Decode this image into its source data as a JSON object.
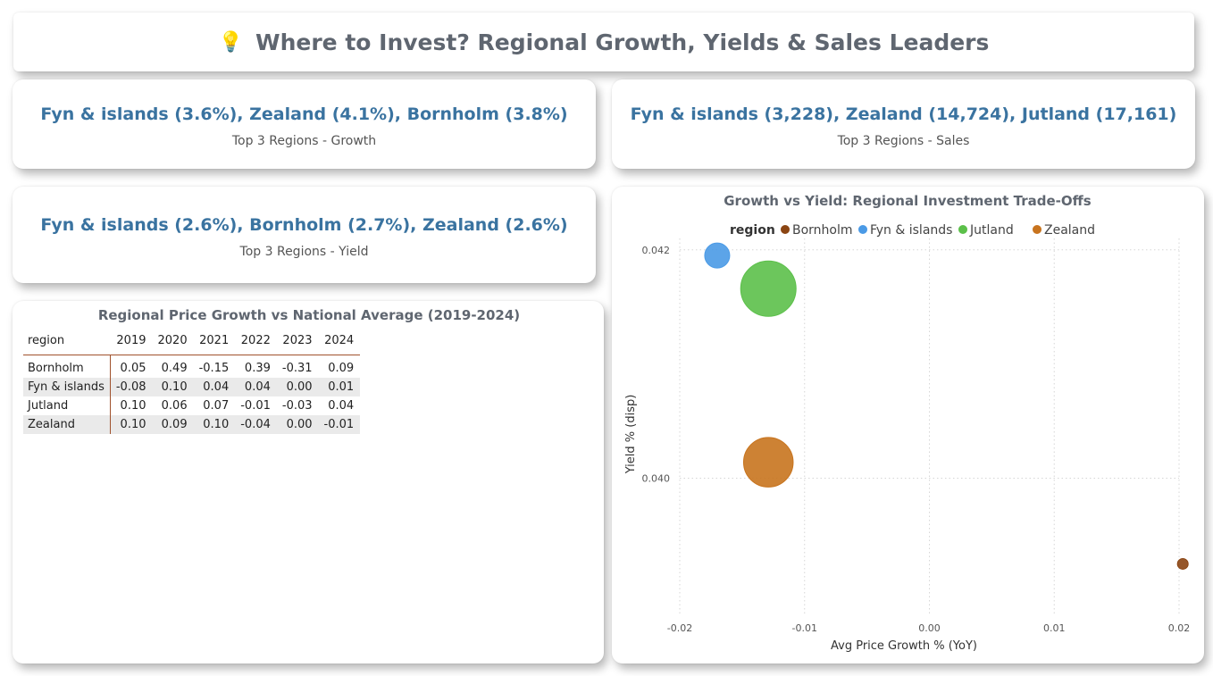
{
  "header": {
    "icon": "lightbulb-icon",
    "title": "Where to Invest? Regional Growth, Yields & Sales Leaders"
  },
  "kpis": {
    "growth": {
      "value": "Fyn & islands (3.6%), Zealand (4.1%), Bornholm (3.8%)",
      "label": "Top 3 Regions - Growth"
    },
    "sales": {
      "value": "Fyn & islands (3,228), Zealand (14,724), Jutland (17,161)",
      "label": "Top 3 Regions - Sales"
    },
    "yield": {
      "value": "Fyn & islands (2.6%), Bornholm (2.7%), Zealand (2.6%)",
      "label": "Top 3 Regions - Yield"
    }
  },
  "matrix": {
    "title": "Regional Price Growth vs National Average (2019-2024)",
    "row_header": "region",
    "columns": [
      "2019",
      "2020",
      "2021",
      "2022",
      "2023",
      "2024"
    ],
    "rows": [
      {
        "region": "Bornholm",
        "values": [
          "0.05",
          "0.49",
          "-0.15",
          "0.39",
          "-0.31",
          "0.09"
        ]
      },
      {
        "region": "Fyn & islands",
        "values": [
          "-0.08",
          "0.10",
          "0.04",
          "0.04",
          "0.00",
          "0.01"
        ]
      },
      {
        "region": "Jutland",
        "values": [
          "0.10",
          "0.06",
          "0.07",
          "-0.01",
          "-0.03",
          "0.04"
        ]
      },
      {
        "region": "Zealand",
        "values": [
          "0.10",
          "0.09",
          "0.10",
          "-0.04",
          "0.00",
          "-0.01"
        ]
      }
    ]
  },
  "chart_data": {
    "type": "scatter",
    "title": "Growth vs Yield: Regional Investment Trade-Offs",
    "xlabel": "Avg Price Growth % (YoY)",
    "ylabel": "Yield % (disp)",
    "legend_title": "region",
    "legend_position": "top",
    "grid": true,
    "xlim": [
      -0.02,
      0.02
    ],
    "ylim": [
      0.0388,
      0.0421
    ],
    "x_ticks": [
      "-0.02",
      "-0.01",
      "0.00",
      "0.01",
      "0.02"
    ],
    "x_tick_values": [
      -0.02,
      -0.01,
      0.0,
      0.01,
      0.02
    ],
    "y_ticks": [
      "0.040",
      "0.042"
    ],
    "y_tick_values": [
      0.04,
      0.042
    ],
    "series": [
      {
        "name": "Bornholm",
        "color": "#8b4513",
        "x": 0.0203,
        "y": 0.03925,
        "size": 3228
      },
      {
        "name": "Fyn & islands",
        "color": "#4a9ae6",
        "x": -0.017,
        "y": 0.04195,
        "size": 3228
      },
      {
        "name": "Jutland",
        "color": "#5cc04a",
        "x": -0.0129,
        "y": 0.04166,
        "size": 17161
      },
      {
        "name": "Zealand",
        "color": "#c8741e",
        "x": -0.0129,
        "y": 0.04014,
        "size": 14724
      }
    ]
  }
}
